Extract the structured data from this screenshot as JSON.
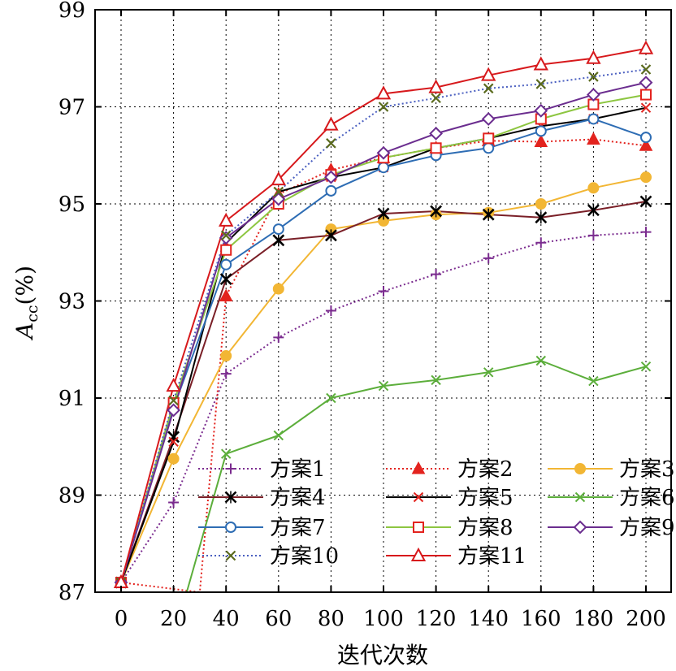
{
  "chart_data": {
    "type": "line",
    "xlabel": "迭代次数",
    "ylabel": "Acc(%)",
    "ylabel_main": "A",
    "ylabel_sub": "cc",
    "ylabel_unit": "(%)",
    "xlim": [
      -10,
      205
    ],
    "ylim": [
      87,
      99
    ],
    "xticks": [
      0,
      20,
      40,
      60,
      80,
      100,
      120,
      140,
      160,
      180,
      200
    ],
    "yticks": [
      87,
      89,
      91,
      93,
      95,
      97,
      99
    ],
    "grid": true,
    "legend": "lower-right",
    "series": [
      {
        "name": "方案1",
        "color": "#7B2C8F",
        "dash": "dotted",
        "marker": "plus",
        "points": [
          [
            0,
            87.2
          ],
          [
            20,
            88.85
          ],
          [
            40,
            91.5
          ],
          [
            60,
            92.25
          ],
          [
            80,
            92.8
          ],
          [
            100,
            93.2
          ],
          [
            120,
            93.55
          ],
          [
            140,
            93.88
          ],
          [
            160,
            94.2
          ],
          [
            180,
            94.35
          ],
          [
            200,
            94.42
          ]
        ]
      },
      {
        "name": "方案2",
        "color": "#E3231E",
        "dash": "dotted",
        "marker": "triangle-filled",
        "points": [
          [
            0,
            87.2
          ],
          [
            30,
            87.0
          ],
          [
            40,
            93.1
          ],
          [
            60,
            95.2
          ],
          [
            80,
            95.7
          ],
          [
            100,
            95.95
          ],
          [
            120,
            96.15
          ],
          [
            140,
            96.3
          ],
          [
            160,
            96.28
          ],
          [
            180,
            96.33
          ],
          [
            200,
            96.2
          ]
        ]
      },
      {
        "name": "方案3",
        "color": "#F2B634",
        "dash": "solid",
        "marker": "circle-filled",
        "points": [
          [
            0,
            87.2
          ],
          [
            20,
            89.75
          ],
          [
            40,
            91.87
          ],
          [
            60,
            93.25
          ],
          [
            80,
            94.48
          ],
          [
            100,
            94.65
          ],
          [
            120,
            94.78
          ],
          [
            140,
            94.82
          ],
          [
            160,
            95.0
          ],
          [
            180,
            95.33
          ],
          [
            200,
            95.55
          ]
        ]
      },
      {
        "name": "方案4",
        "color": "#7A1F27",
        "dash": "solid",
        "marker": "star",
        "points": [
          [
            0,
            87.2
          ],
          [
            20,
            90.2
          ],
          [
            40,
            93.45
          ],
          [
            60,
            94.25
          ],
          [
            80,
            94.35
          ],
          [
            100,
            94.8
          ],
          [
            120,
            94.85
          ],
          [
            140,
            94.78
          ],
          [
            160,
            94.72
          ],
          [
            180,
            94.87
          ],
          [
            200,
            95.05
          ]
        ]
      },
      {
        "name": "方案5",
        "color": "#000000",
        "dash": "solid",
        "marker": "x-red",
        "points": [
          [
            0,
            87.2
          ],
          [
            20,
            90.1
          ],
          [
            40,
            94.2
          ],
          [
            60,
            95.25
          ],
          [
            80,
            95.55
          ],
          [
            100,
            95.75
          ],
          [
            120,
            96.15
          ],
          [
            140,
            96.35
          ],
          [
            160,
            96.6
          ],
          [
            180,
            96.75
          ],
          [
            200,
            96.98
          ]
        ]
      },
      {
        "name": "方案6",
        "color": "#5CAE3B",
        "dash": "solid",
        "marker": "x",
        "points": [
          [
            25,
            87.0
          ],
          [
            40,
            89.85
          ],
          [
            60,
            90.23
          ],
          [
            80,
            91.0
          ],
          [
            100,
            91.25
          ],
          [
            120,
            91.37
          ],
          [
            140,
            91.53
          ],
          [
            160,
            91.77
          ],
          [
            180,
            91.35
          ],
          [
            200,
            91.65
          ]
        ]
      },
      {
        "name": "方案7",
        "color": "#2E6DB4",
        "dash": "solid",
        "marker": "circle-open",
        "points": [
          [
            0,
            87.2
          ],
          [
            20,
            90.8
          ],
          [
            40,
            93.75
          ],
          [
            60,
            94.48
          ],
          [
            80,
            95.27
          ],
          [
            100,
            95.75
          ],
          [
            120,
            96.0
          ],
          [
            140,
            96.15
          ],
          [
            160,
            96.5
          ],
          [
            180,
            96.75
          ],
          [
            200,
            96.37
          ]
        ]
      },
      {
        "name": "方案8",
        "color": "#8DC641",
        "dash": "solid",
        "marker": "square-red",
        "points": [
          [
            0,
            87.2
          ],
          [
            20,
            90.9
          ],
          [
            40,
            94.05
          ],
          [
            60,
            95.0
          ],
          [
            80,
            95.6
          ],
          [
            100,
            95.95
          ],
          [
            120,
            96.15
          ],
          [
            140,
            96.35
          ],
          [
            160,
            96.75
          ],
          [
            180,
            97.05
          ],
          [
            200,
            97.25
          ]
        ]
      },
      {
        "name": "方案9",
        "color": "#6B2D8F",
        "dash": "solid",
        "marker": "diamond",
        "points": [
          [
            0,
            87.2
          ],
          [
            20,
            90.75
          ],
          [
            40,
            94.3
          ],
          [
            60,
            95.1
          ],
          [
            80,
            95.55
          ],
          [
            100,
            96.05
          ],
          [
            120,
            96.45
          ],
          [
            140,
            96.75
          ],
          [
            160,
            96.92
          ],
          [
            180,
            97.25
          ],
          [
            200,
            97.5
          ]
        ]
      },
      {
        "name": "方案10",
        "color": "#4A5FC0",
        "dash": "dotted",
        "marker": "x-olive",
        "points": [
          [
            0,
            87.2
          ],
          [
            20,
            90.95
          ],
          [
            40,
            94.35
          ],
          [
            60,
            95.25
          ],
          [
            80,
            96.25
          ],
          [
            100,
            97.0
          ],
          [
            120,
            97.18
          ],
          [
            140,
            97.38
          ],
          [
            160,
            97.47
          ],
          [
            180,
            97.62
          ],
          [
            200,
            97.77
          ]
        ]
      },
      {
        "name": "方案11",
        "color": "#D7191C",
        "dash": "solid",
        "marker": "triangle-open",
        "points": [
          [
            0,
            87.2
          ],
          [
            20,
            91.25
          ],
          [
            40,
            94.65
          ],
          [
            60,
            95.5
          ],
          [
            80,
            96.63
          ],
          [
            100,
            97.27
          ],
          [
            120,
            97.4
          ],
          [
            140,
            97.65
          ],
          [
            160,
            97.87
          ],
          [
            180,
            98.0
          ],
          [
            200,
            98.2
          ]
        ]
      }
    ]
  }
}
